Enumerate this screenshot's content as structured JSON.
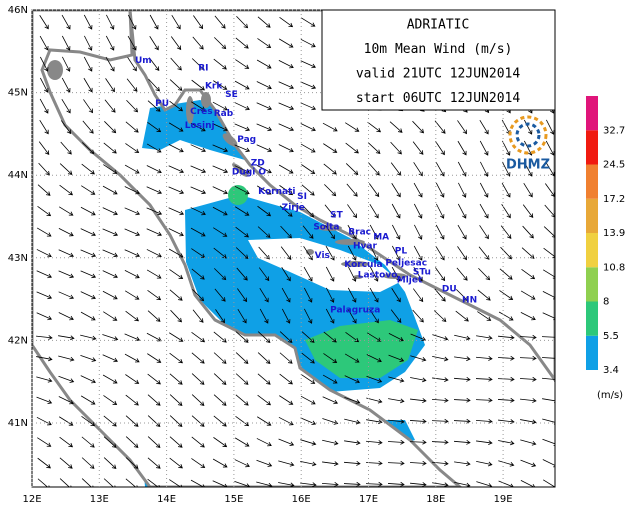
{
  "title_box": {
    "lines": [
      "ADRIATIC",
      "10m Mean Wind (m/s)",
      "valid 21UTC 12JUN2014",
      "start 06UTC 12JUN2014"
    ]
  },
  "logo": {
    "text": "DHMZ"
  },
  "axes": {
    "lon_ticks": [
      {
        "value": 12,
        "label": "12E"
      },
      {
        "value": 13,
        "label": "13E"
      },
      {
        "value": 14,
        "label": "14E"
      },
      {
        "value": 15,
        "label": "15E"
      },
      {
        "value": 16,
        "label": "16E"
      },
      {
        "value": 17,
        "label": "17E"
      },
      {
        "value": 18,
        "label": "18E"
      },
      {
        "value": 19,
        "label": "19E"
      }
    ],
    "lat_ticks": [
      {
        "value": 41,
        "label": "41N"
      },
      {
        "value": 42,
        "label": "42N"
      },
      {
        "value": 43,
        "label": "43N"
      },
      {
        "value": 44,
        "label": "44N"
      },
      {
        "value": 45,
        "label": "45N"
      },
      {
        "value": 46,
        "label": "46N"
      }
    ]
  },
  "colorbar": {
    "levels": [
      3.4,
      5.5,
      8,
      10.8,
      13.9,
      17.2,
      24.5,
      32.7
    ],
    "colors": [
      "#0fa0e6",
      "#2dc87a",
      "#8fd050",
      "#f0d040",
      "#e8a838",
      "#f08030",
      "#f01a10",
      "#e0157a"
    ],
    "unit": "(m/s)"
  },
  "places": [
    {
      "name": "Um",
      "lon": 13.53,
      "lat": 45.39
    },
    {
      "name": "RI",
      "lon": 14.47,
      "lat": 45.3
    },
    {
      "name": "Krk",
      "lon": 14.57,
      "lat": 45.08
    },
    {
      "name": "SE",
      "lon": 14.87,
      "lat": 44.98
    },
    {
      "name": "PU",
      "lon": 13.83,
      "lat": 44.87
    },
    {
      "name": "Cres",
      "lon": 14.35,
      "lat": 44.77
    },
    {
      "name": "Rab",
      "lon": 14.7,
      "lat": 44.75
    },
    {
      "name": "Losinj",
      "lon": 14.27,
      "lat": 44.6
    },
    {
      "name": "Pag",
      "lon": 15.05,
      "lat": 44.43
    },
    {
      "name": "ZD",
      "lon": 15.25,
      "lat": 44.15
    },
    {
      "name": "Dugi O",
      "lon": 14.97,
      "lat": 44.04
    },
    {
      "name": "Kornati",
      "lon": 15.36,
      "lat": 43.8
    },
    {
      "name": "SI",
      "lon": 15.94,
      "lat": 43.74
    },
    {
      "name": "Zirje",
      "lon": 15.71,
      "lat": 43.61
    },
    {
      "name": "ST",
      "lon": 16.43,
      "lat": 43.52
    },
    {
      "name": "Solta",
      "lon": 16.18,
      "lat": 43.37
    },
    {
      "name": "Brac",
      "lon": 16.7,
      "lat": 43.31
    },
    {
      "name": "MA",
      "lon": 17.07,
      "lat": 43.25
    },
    {
      "name": "Hvar",
      "lon": 16.77,
      "lat": 43.14
    },
    {
      "name": "Vis",
      "lon": 16.2,
      "lat": 43.03
    },
    {
      "name": "PL",
      "lon": 17.39,
      "lat": 43.08
    },
    {
      "name": "Korcula",
      "lon": 16.64,
      "lat": 42.92
    },
    {
      "name": "Peljesac",
      "lon": 17.25,
      "lat": 42.94
    },
    {
      "name": "Lastovo",
      "lon": 16.84,
      "lat": 42.79
    },
    {
      "name": "STu",
      "lon": 17.66,
      "lat": 42.83
    },
    {
      "name": "Mljet",
      "lon": 17.42,
      "lat": 42.73
    },
    {
      "name": "DU",
      "lon": 18.09,
      "lat": 42.62
    },
    {
      "name": "HN",
      "lon": 18.39,
      "lat": 42.49
    },
    {
      "name": "Palagruza",
      "lon": 16.43,
      "lat": 42.37
    }
  ]
}
